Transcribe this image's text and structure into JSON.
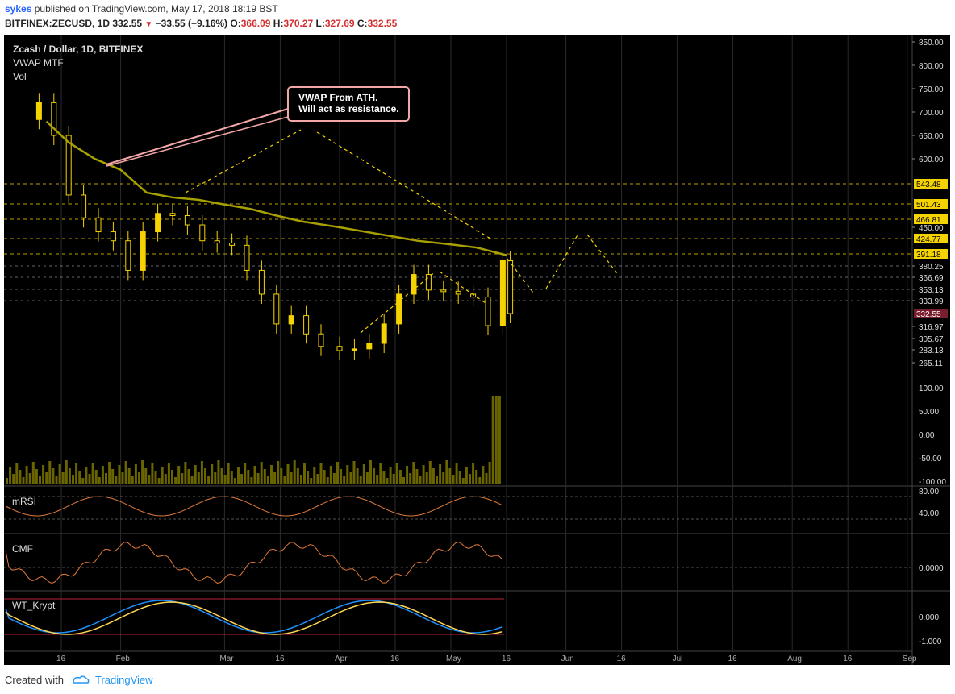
{
  "header": {
    "user": "sykes",
    "published": "published on TradingView.com, May 17, 2018 18:19 BST",
    "symbol": "BITFINEX:ZECUSD, 1D",
    "last": "332.55",
    "change": "−33.55 (−9.16%)",
    "o_label": "O:",
    "o": "366.09",
    "h_label": "H:",
    "h": "370.27",
    "l_label": "L:",
    "l": "327.69",
    "c_label": "C:",
    "c": "332.55"
  },
  "legend": {
    "title": "Zcash / Dollar, 1D, BITFINEX",
    "vwap": "VWAP MTF",
    "vol": "Vol"
  },
  "annotation": {
    "line1": "VWAP From ATH.",
    "line2": "Will act as resistance."
  },
  "indicators": {
    "rsi": "mRSI",
    "cmf": "CMF",
    "wt": "WT_Krypt"
  },
  "footer": {
    "created": "Created with",
    "brand": "TradingView"
  },
  "colors": {
    "candle": "#f5d300",
    "vwap": "#a7a000",
    "level_line": "#f5d300",
    "price_tag": "#7a1d2e",
    "rsi_line": "#e07b39",
    "cmf_line": "#e07b39",
    "wt_fast": "#1e90ff",
    "wt_slow": "#ffd54f"
  },
  "chart_data": {
    "type": "line",
    "price_axis_ticks": [
      "850.00",
      "800.00",
      "750.00",
      "700.00",
      "650.00",
      "600.00",
      "450.00",
      "380.25",
      "366.69",
      "353.13",
      "333.99",
      "316.97",
      "305.67",
      "283.13",
      "265.11"
    ],
    "level_tags": [
      "543.48",
      "501.43",
      "466.81",
      "424.77",
      "391.18"
    ],
    "last_price_tag": "332.55",
    "vol_axis_ticks": [
      "100.00",
      "50.00",
      "0.00",
      "-50.00",
      "-100.00"
    ],
    "rsi_axis_ticks": [
      "80.00",
      "40.00"
    ],
    "cmf_axis_ticks": [
      "0.0000"
    ],
    "wt_axis_ticks": [
      "0.000",
      "-1.000"
    ],
    "x_ticks": [
      "16",
      "Feb",
      "Mar",
      "16",
      "Apr",
      "16",
      "May",
      "16",
      "Jun",
      "16",
      "Jul",
      "16",
      "Aug",
      "16",
      "Sep"
    ],
    "x_dates": [
      "2018-01-16",
      "2018-02-01",
      "2018-03-01",
      "2018-03-16",
      "2018-04-01",
      "2018-04-16",
      "2018-05-01",
      "2018-05-16",
      "2018-06-01",
      "2018-06-16",
      "2018-07-01",
      "2018-07-16",
      "2018-08-01",
      "2018-08-16",
      "2018-09-01"
    ],
    "vwap": {
      "name": "VWAP MTF",
      "x": [
        "2018-01-12",
        "2018-01-18",
        "2018-01-25",
        "2018-02-01",
        "2018-02-08",
        "2018-02-15",
        "2018-02-22",
        "2018-03-01",
        "2018-03-08",
        "2018-03-15",
        "2018-03-22",
        "2018-04-01",
        "2018-04-08",
        "2018-04-15",
        "2018-04-22",
        "2018-05-01",
        "2018-05-08",
        "2018-05-16"
      ],
      "y": [
        680,
        635,
        600,
        575,
        525,
        515,
        510,
        500,
        490,
        475,
        462,
        450,
        440,
        430,
        420,
        412,
        405,
        390
      ]
    },
    "candles": {
      "x": [
        "2018-01-10",
        "2018-01-14",
        "2018-01-18",
        "2018-01-22",
        "2018-01-26",
        "2018-01-30",
        "2018-02-03",
        "2018-02-07",
        "2018-02-11",
        "2018-02-15",
        "2018-02-19",
        "2018-02-23",
        "2018-02-27",
        "2018-03-03",
        "2018-03-07",
        "2018-03-11",
        "2018-03-15",
        "2018-03-19",
        "2018-03-23",
        "2018-03-27",
        "2018-04-01",
        "2018-04-05",
        "2018-04-09",
        "2018-04-13",
        "2018-04-17",
        "2018-04-21",
        "2018-04-25",
        "2018-04-29",
        "2018-05-03",
        "2018-05-07",
        "2018-05-11",
        "2018-05-15",
        "2018-05-17"
      ],
      "close": [
        720,
        650,
        520,
        470,
        440,
        420,
        375,
        440,
        480,
        475,
        455,
        420,
        415,
        410,
        375,
        345,
        320,
        330,
        310,
        290,
        282,
        285,
        296,
        320,
        345,
        370,
        352,
        350,
        345,
        340,
        318,
        385,
        332.55
      ]
    },
    "volume_note": "Volume spike at 2018-05-16"
  }
}
